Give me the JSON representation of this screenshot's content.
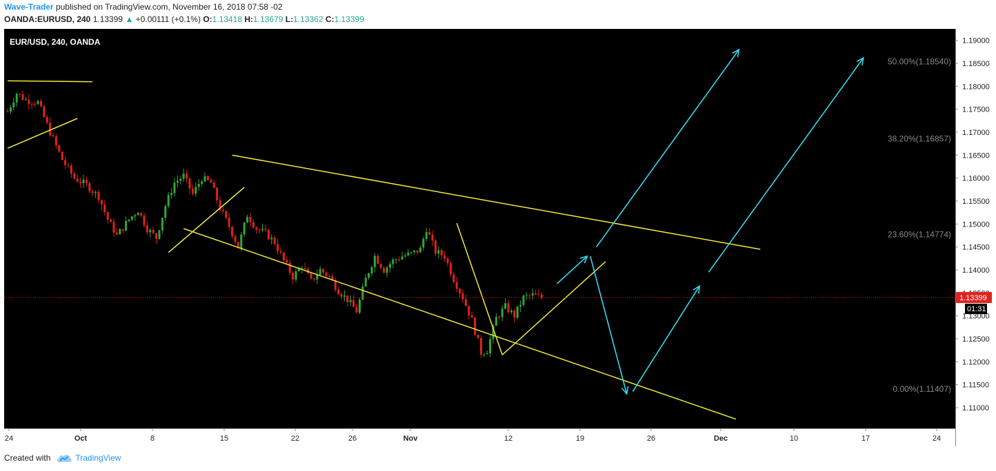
{
  "header": {
    "author": "Wave-Trader",
    "published_text": "published on TradingView.com, November 16, 2018 07:58 -02",
    "symbol": "OANDA:EURUSD, 240",
    "last": "1.13399",
    "change_arrow": "▲",
    "change": "+0.00111 (+0.1%)",
    "o_label": "O:",
    "o_value": "1.13418",
    "h_label": "H:",
    "h_value": "1.13679",
    "l_label": "L:",
    "l_value": "1.13362",
    "c_label": "C:",
    "c_value": "1.13399"
  },
  "footer": {
    "created_with": "Created with",
    "brand": "TradingView",
    "brand_icon": "tradingview-cloud-icon"
  },
  "colors": {
    "background": "#000000",
    "up_candle": "#2fa83a",
    "down_candle": "#e0221c",
    "trendline": "#f2ea3a",
    "projection": "#36d7ee",
    "price_line": "#e0221c",
    "fib_text": "#8a8a8a",
    "axis_text": "#222222"
  },
  "chart_data": {
    "type": "candlestick",
    "title": "EUR/USD, 240, OANDA",
    "x_axis_ticks": [
      "24",
      "Oct",
      "8",
      "15",
      "22",
      "26",
      "Nov",
      "12",
      "19",
      "26",
      "Dec",
      "10",
      "17",
      "24"
    ],
    "y_axis_ticks": [
      "1.19000",
      "1.18500",
      "1.18000",
      "1.17500",
      "1.17000",
      "1.16500",
      "1.16000",
      "1.15500",
      "1.15000",
      "1.14500",
      "1.14000",
      "1.13500",
      "1.13000",
      "1.12500",
      "1.12000",
      "1.11500",
      "1.11000"
    ],
    "ylim": [
      1.1055,
      1.1925
    ],
    "current_price": {
      "label": "1.13399",
      "value": 1.13399,
      "countdown": "01:31"
    },
    "fib_levels": [
      {
        "label": "50.00%(1.18540)",
        "value": 1.1854
      },
      {
        "label": "38.20%(1.16857)",
        "value": 1.16857
      },
      {
        "label": "23.60%(1.14774)",
        "value": 1.14774
      },
      {
        "label": "0.00%(1.11407)",
        "value": 1.11407
      }
    ],
    "price_path": [
      [
        0,
        1.1745
      ],
      [
        3,
        1.1785
      ],
      [
        6,
        1.177
      ],
      [
        10,
        1.1765
      ],
      [
        14,
        1.17
      ],
      [
        18,
        1.164
      ],
      [
        22,
        1.16
      ],
      [
        26,
        1.1585
      ],
      [
        30,
        1.156
      ],
      [
        33,
        1.151
      ],
      [
        36,
        1.1475
      ],
      [
        40,
        1.151
      ],
      [
        43,
        1.153
      ],
      [
        46,
        1.149
      ],
      [
        49,
        1.147
      ],
      [
        52,
        1.154
      ],
      [
        55,
        1.159
      ],
      [
        58,
        1.1605
      ],
      [
        61,
        1.1565
      ],
      [
        64,
        1.16
      ],
      [
        67,
        1.159
      ],
      [
        70,
        1.1535
      ],
      [
        73,
        1.1495
      ],
      [
        76,
        1.145
      ],
      [
        79,
        1.152
      ],
      [
        82,
        1.149
      ],
      [
        85,
        1.148
      ],
      [
        88,
        1.146
      ],
      [
        91,
        1.142
      ],
      [
        94,
        1.1385
      ],
      [
        97,
        1.141
      ],
      [
        100,
        1.1375
      ],
      [
        103,
        1.14
      ],
      [
        106,
        1.1385
      ],
      [
        109,
        1.1355
      ],
      [
        112,
        1.1335
      ],
      [
        115,
        1.131
      ],
      [
        118,
        1.138
      ],
      [
        121,
        1.143
      ],
      [
        124,
        1.14
      ],
      [
        127,
        1.142
      ],
      [
        130,
        1.143
      ],
      [
        133,
        1.1435
      ],
      [
        136,
        1.1445
      ],
      [
        138,
        1.149
      ],
      [
        141,
        1.144
      ],
      [
        144,
        1.143
      ],
      [
        147,
        1.138
      ],
      [
        150,
        1.134
      ],
      [
        153,
        1.129
      ],
      [
        156,
        1.122
      ],
      [
        158,
        1.1225
      ],
      [
        161,
        1.1295
      ],
      [
        164,
        1.132
      ],
      [
        167,
        1.13
      ],
      [
        170,
        1.134
      ],
      [
        173,
        1.1345
      ],
      [
        176,
        1.134
      ]
    ],
    "trendlines": [
      {
        "name": "channel-upper",
        "points": [
          [
            74,
            1.165
          ],
          [
            248,
            1.1445
          ]
        ]
      },
      {
        "name": "channel-lower",
        "points": [
          [
            58,
            1.149
          ],
          [
            240,
            1.1075
          ]
        ]
      },
      {
        "name": "top-left-flat",
        "points": [
          [
            0,
            1.1812
          ],
          [
            28,
            1.181
          ]
        ]
      },
      {
        "name": "top-left-diagonal",
        "points": [
          [
            0,
            1.1665
          ],
          [
            23,
            1.173
          ]
        ]
      },
      {
        "name": "rise-line",
        "points": [
          [
            53,
            1.1438
          ],
          [
            78,
            1.158
          ]
        ]
      },
      {
        "name": "wedge-upper",
        "points": [
          [
            148,
            1.1502
          ],
          [
            163,
            1.1215
          ]
        ]
      },
      {
        "name": "wedge-lower",
        "points": [
          [
            163,
            1.1215
          ],
          [
            197,
            1.1418
          ]
        ]
      }
    ],
    "projections": [
      {
        "name": "short-up",
        "points": [
          [
            181,
            1.137
          ],
          [
            191,
            1.143
          ]
        ]
      },
      {
        "name": "down-leg",
        "points": [
          [
            192,
            1.143
          ],
          [
            204,
            1.113
          ]
        ]
      },
      {
        "name": "up-leg",
        "points": [
          [
            206,
            1.1135
          ],
          [
            228,
            1.1365
          ]
        ]
      },
      {
        "name": "long-up-middle",
        "points": [
          [
            194,
            1.145
          ],
          [
            241,
            1.188
          ]
        ]
      },
      {
        "name": "long-up-right",
        "points": [
          [
            231,
            1.1395
          ],
          [
            282,
            1.1862
          ]
        ]
      }
    ]
  }
}
